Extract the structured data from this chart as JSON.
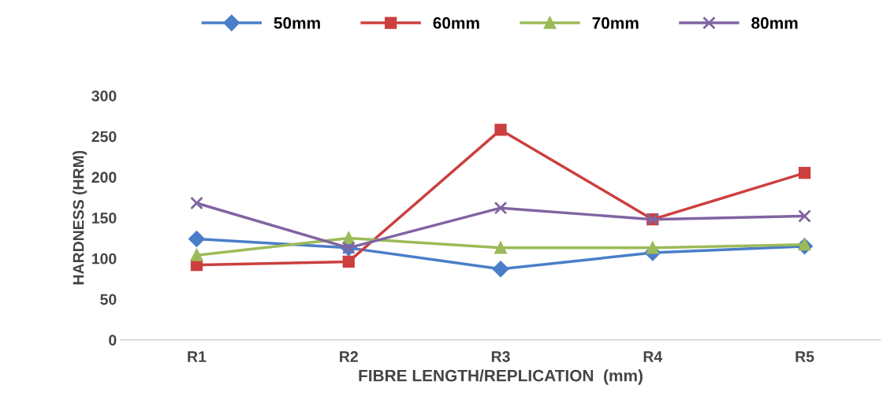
{
  "chart_data": {
    "type": "line",
    "xlabel": "FIBRE LENGTH/REPLICATION  (mm)",
    "ylabel": "HARDNESS (HRM)",
    "categories": [
      "R1",
      "R2",
      "R3",
      "R4",
      "R5"
    ],
    "series": [
      {
        "name": "50mm",
        "color": "#4a7ec8",
        "marker": "diamond",
        "values": [
          124,
          113,
          87,
          107,
          115
        ]
      },
      {
        "name": "60mm",
        "color": "#cc3f3f",
        "marker": "square",
        "values": [
          92,
          96,
          258,
          148,
          205
        ]
      },
      {
        "name": "70mm",
        "color": "#9bbb59",
        "marker": "triangle",
        "values": [
          104,
          125,
          113,
          113,
          117
        ]
      },
      {
        "name": "80mm",
        "color": "#8064a2",
        "marker": "cross",
        "values": [
          168,
          113,
          162,
          148,
          152
        ]
      }
    ],
    "ylim": [
      0,
      300
    ],
    "yticks": [
      0,
      50,
      100,
      150,
      200,
      250,
      300
    ],
    "grid": false,
    "legend": "top"
  }
}
